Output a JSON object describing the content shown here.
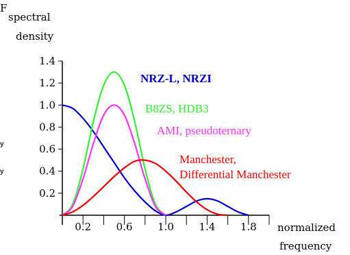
{
  "chart_data": {
    "type": "line",
    "ylabel": [
      "spectral",
      "density"
    ],
    "xlabel": [
      "normalized",
      "frequency"
    ],
    "xlim": [
      0,
      2
    ],
    "ylim": [
      0,
      1.4
    ],
    "yticks": [
      "1.4",
      "1.2",
      "1.0",
      "0.8",
      "0.6",
      "0.4",
      "0.2"
    ],
    "xticks": [
      "0.2",
      "0.6",
      "1.0",
      "1.4",
      "1.8"
    ],
    "series": [
      {
        "name": "NRZ-L, NRZI",
        "color": "#0000cc",
        "x": [
          0,
          0.1,
          0.2,
          0.3,
          0.4,
          0.5,
          0.6,
          0.7,
          0.8,
          0.9,
          1.0,
          1.1,
          1.2,
          1.3,
          1.4,
          1.5,
          1.6,
          1.7,
          1.8
        ],
        "y": [
          1.0,
          0.97,
          0.88,
          0.76,
          0.62,
          0.48,
          0.34,
          0.22,
          0.12,
          0.04,
          0.0,
          0.03,
          0.08,
          0.13,
          0.15,
          0.13,
          0.08,
          0.03,
          0.0
        ]
      },
      {
        "name": "B8ZS, HDB3",
        "color": "#33ee33",
        "x": [
          0,
          0.1,
          0.2,
          0.3,
          0.4,
          0.5,
          0.6,
          0.7,
          0.8,
          0.9,
          1.0
        ],
        "y": [
          0.0,
          0.1,
          0.42,
          0.85,
          1.18,
          1.3,
          1.18,
          0.85,
          0.42,
          0.1,
          0.0
        ]
      },
      {
        "name": "AMI, pseudoternary",
        "color": "#ff33ff",
        "x": [
          0,
          0.1,
          0.2,
          0.3,
          0.4,
          0.5,
          0.6,
          0.7,
          0.8,
          0.9,
          1.0
        ],
        "y": [
          0.0,
          0.08,
          0.33,
          0.65,
          0.91,
          1.0,
          0.91,
          0.65,
          0.33,
          0.08,
          0.0
        ]
      },
      {
        "name": "Manchester, Differential Manchester",
        "color": "#ee0000",
        "x": [
          0,
          0.1,
          0.2,
          0.3,
          0.4,
          0.5,
          0.6,
          0.7,
          0.8,
          0.9,
          1.0,
          1.1,
          1.2,
          1.3,
          1.4,
          1.5,
          1.6
        ],
        "y": [
          0.0,
          0.03,
          0.09,
          0.17,
          0.26,
          0.35,
          0.43,
          0.49,
          0.5,
          0.47,
          0.4,
          0.31,
          0.21,
          0.12,
          0.05,
          0.01,
          0.0
        ]
      }
    ],
    "legend": [
      {
        "lines": [
          "NRZ-L, NRZI"
        ],
        "color": "#0000cc",
        "bold": true
      },
      {
        "lines": [
          "B8ZS, HDB3"
        ],
        "color": "#33ee33",
        "bold": false
      },
      {
        "lines": [
          "AMI, pseudoternary"
        ],
        "color": "#ff33ff",
        "bold": false
      },
      {
        "lines": [
          "Manchester,",
          "Differential Manchester"
        ],
        "color": "#ee0000",
        "bold": false
      }
    ],
    "stray_text": [
      "F",
      "y",
      "y"
    ]
  }
}
